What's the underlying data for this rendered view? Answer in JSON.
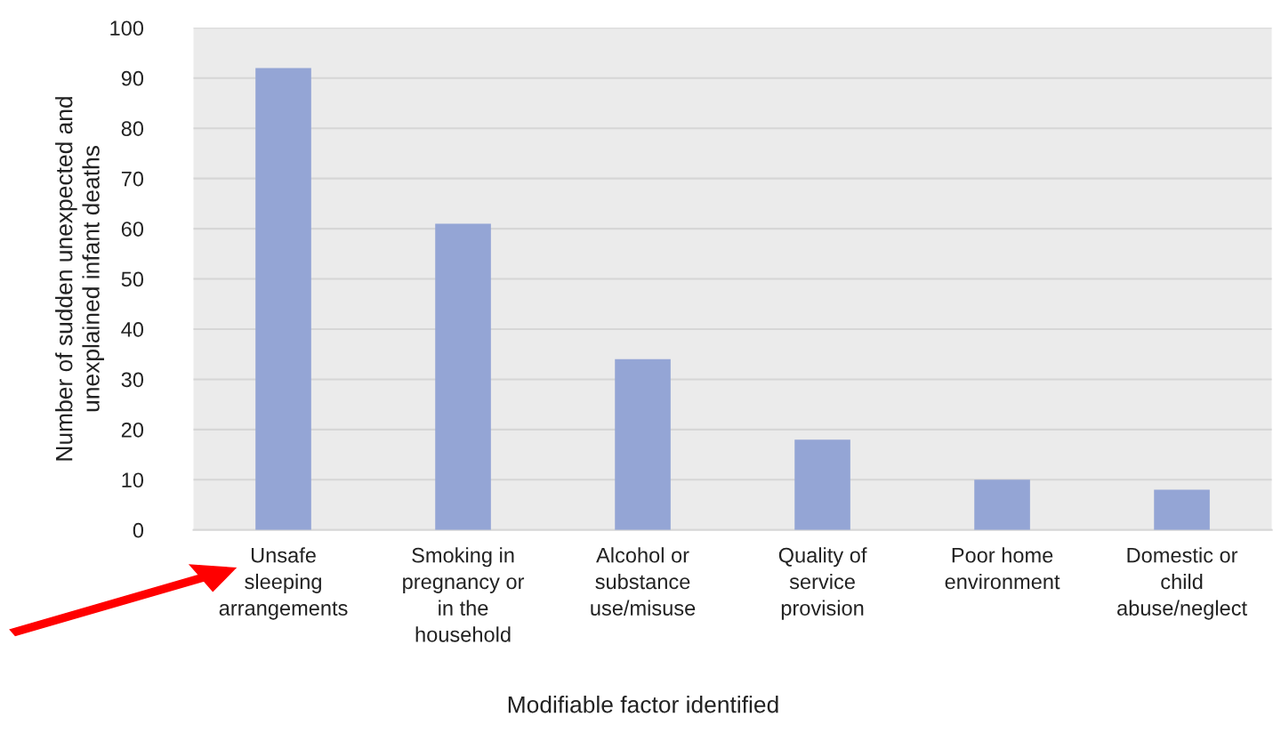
{
  "chart_data": {
    "type": "bar",
    "xlabel": "Modifiable factor identified",
    "ylabel": "Number of sudden unexpected and\nunexplained infant deaths",
    "categories": [
      "Unsafe\nsleeping\narrangements",
      "Smoking in\npregnancy or\nin the\nhousehold",
      "Alcohol or\nsubstance\nuse/misuse",
      "Quality of\nservice\nprovision",
      "Poor home\nenvironment",
      "Domestic or\nchild\nabuse/neglect"
    ],
    "values": [
      92,
      61,
      34,
      18,
      10,
      8
    ],
    "color": "#94a5d5",
    "ylim": [
      0,
      100
    ],
    "yticks": [
      0,
      10,
      20,
      30,
      40,
      50,
      60,
      70,
      80,
      90,
      100
    ],
    "grid": "y",
    "legend": false
  }
}
